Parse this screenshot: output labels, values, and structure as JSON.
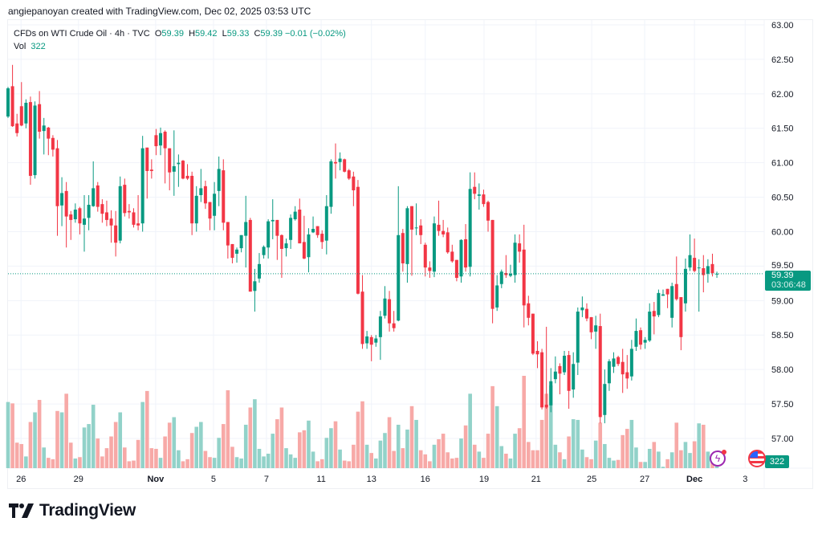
{
  "credit": "angiepanoyan created with TradingView.com, Dec 02, 2025 03:53 UTC",
  "legend": {
    "symbol": "CFDs on WTI Crude Oil · 4h · TVC",
    "o_label": "O",
    "o": "59.39",
    "h_label": "H",
    "h": "59.42",
    "l_label": "L",
    "l": "59.33",
    "c_label": "C",
    "c": "59.39",
    "change": "−0.01 (−0.02%)",
    "vol_label": "Vol",
    "vol": "322"
  },
  "price_tag": {
    "price": "59.39",
    "countdown": "03:06:48"
  },
  "volume_tag": "322",
  "logo": "TradingView",
  "colors": {
    "up": "#089981",
    "down": "#F23645",
    "vol_up": "#92d2c9",
    "vol_down": "#f7a9a7",
    "grid": "#f0f3fa"
  },
  "chart_data": {
    "type": "candlestick",
    "title": "CFDs on WTI Crude Oil · 4h · TVC",
    "ylim": [
      56.6,
      63.07
    ],
    "yticks": [
      "63.00",
      "62.50",
      "62.00",
      "61.50",
      "61.00",
      "60.50",
      "60.00",
      "59.50",
      "59.00",
      "58.50",
      "58.00",
      "57.50",
      "57.00"
    ],
    "last_price": 59.39,
    "xticks": [
      {
        "label": "26",
        "bar": 2.9
      },
      {
        "label": "29",
        "bar": 15.7
      },
      {
        "label": "Nov",
        "bar": 32.9,
        "bold": true
      },
      {
        "label": "5",
        "bar": 45.8
      },
      {
        "label": "7",
        "bar": 57.6
      },
      {
        "label": "11",
        "bar": 69.8
      },
      {
        "label": "13",
        "bar": 81.0
      },
      {
        "label": "16",
        "bar": 93.0
      },
      {
        "label": "19",
        "bar": 106.1
      },
      {
        "label": "21",
        "bar": 117.7
      },
      {
        "label": "25",
        "bar": 130.1
      },
      {
        "label": "27",
        "bar": 141.9
      },
      {
        "label": "Dec",
        "bar": 153.0,
        "bold": true
      },
      {
        "label": "3",
        "bar": 164.3
      }
    ],
    "ohlc": [
      [
        61.67,
        62.1,
        61.65,
        62.08
      ],
      [
        62.11,
        62.42,
        61.52,
        61.53
      ],
      [
        61.57,
        61.71,
        61.38,
        61.43
      ],
      [
        61.82,
        62.17,
        61.53,
        61.54
      ],
      [
        61.57,
        61.92,
        61.5,
        61.87
      ],
      [
        61.88,
        61.96,
        60.68,
        60.81
      ],
      [
        60.82,
        61.89,
        60.77,
        61.83
      ],
      [
        61.85,
        62.04,
        61.35,
        61.45
      ],
      [
        61.46,
        61.65,
        61.12,
        61.54
      ],
      [
        61.51,
        61.52,
        61.11,
        61.35
      ],
      [
        61.36,
        61.4,
        61.09,
        61.19
      ],
      [
        61.21,
        61.33,
        59.94,
        60.37
      ],
      [
        60.38,
        60.79,
        60.08,
        60.56
      ],
      [
        60.59,
        60.72,
        59.77,
        60.22
      ],
      [
        60.25,
        60.3,
        59.88,
        60.17
      ],
      [
        60.18,
        60.41,
        60.13,
        60.32
      ],
      [
        60.34,
        60.36,
        59.96,
        60.12
      ],
      [
        60.1,
        60.53,
        59.71,
        60.19
      ],
      [
        60.2,
        60.53,
        60.02,
        60.39
      ],
      [
        60.37,
        61.02,
        60.36,
        60.63
      ],
      [
        60.67,
        60.72,
        60.29,
        60.36
      ],
      [
        60.4,
        60.47,
        60.13,
        60.26
      ],
      [
        60.28,
        60.45,
        60.08,
        60.17
      ],
      [
        60.19,
        60.31,
        59.84,
        60.09
      ],
      [
        60.09,
        60.3,
        59.64,
        59.84
      ],
      [
        59.87,
        60.8,
        59.83,
        60.66
      ],
      [
        60.68,
        60.77,
        60.22,
        60.27
      ],
      [
        60.3,
        60.4,
        60.19,
        60.28
      ],
      [
        60.28,
        60.34,
        60.06,
        60.1
      ],
      [
        60.12,
        60.53,
        60.02,
        60.09
      ],
      [
        60.12,
        61.39,
        60.0,
        61.21
      ],
      [
        61.22,
        61.22,
        60.48,
        60.88
      ],
      [
        60.9,
        61.05,
        60.77,
        60.88
      ],
      [
        61.4,
        61.49,
        61.11,
        61.24
      ],
      [
        61.25,
        61.51,
        61.11,
        61.43
      ],
      [
        61.45,
        61.47,
        60.7,
        61.21
      ],
      [
        61.21,
        61.21,
        60.6,
        60.86
      ],
      [
        60.87,
        61.47,
        60.52,
        60.95
      ],
      [
        60.98,
        61.12,
        60.65,
        61.0
      ],
      [
        61.03,
        61.04,
        60.76,
        60.77
      ],
      [
        60.81,
        60.98,
        60.75,
        60.77
      ],
      [
        60.81,
        60.87,
        59.95,
        60.12
      ],
      [
        60.12,
        60.66,
        60.0,
        60.52
      ],
      [
        60.53,
        60.91,
        60.43,
        60.63
      ],
      [
        60.66,
        60.74,
        60.33,
        60.41
      ],
      [
        60.43,
        60.43,
        60.02,
        60.19
      ],
      [
        60.23,
        60.72,
        60.02,
        60.55
      ],
      [
        60.59,
        61.09,
        60.37,
        60.91
      ],
      [
        60.89,
        61.05,
        60.02,
        60.13
      ],
      [
        60.14,
        60.14,
        59.61,
        59.8
      ],
      [
        59.82,
        59.82,
        59.54,
        59.62
      ],
      [
        59.68,
        59.77,
        59.55,
        59.74
      ],
      [
        59.76,
        59.95,
        59.7,
        59.95
      ],
      [
        59.94,
        60.52,
        59.48,
        60.14
      ],
      [
        60.17,
        60.2,
        59.13,
        59.13
      ],
      [
        59.14,
        59.46,
        58.84,
        59.28
      ],
      [
        59.32,
        59.69,
        59.26,
        59.53
      ],
      [
        59.66,
        59.8,
        59.61,
        59.78
      ],
      [
        59.77,
        60.18,
        59.61,
        60.15
      ],
      [
        60.15,
        60.47,
        59.89,
        60.17
      ],
      [
        60.17,
        60.17,
        59.59,
        59.94
      ],
      [
        59.95,
        59.96,
        59.33,
        59.75
      ],
      [
        59.76,
        59.9,
        59.64,
        59.83
      ],
      [
        59.88,
        60.25,
        59.75,
        60.2
      ],
      [
        60.18,
        60.37,
        60.16,
        60.29
      ],
      [
        60.32,
        60.48,
        59.83,
        59.83
      ],
      [
        59.85,
        60.23,
        59.6,
        59.61
      ],
      [
        59.63,
        60.05,
        59.41,
        59.96
      ],
      [
        59.99,
        60.22,
        59.98,
        60.04
      ],
      [
        60.08,
        60.08,
        59.91,
        59.95
      ],
      [
        59.97,
        60.02,
        59.75,
        59.85
      ],
      [
        59.87,
        60.53,
        59.67,
        60.37
      ],
      [
        60.36,
        61.05,
        60.26,
        61.02
      ],
      [
        61.01,
        61.28,
        60.77,
        60.99
      ],
      [
        61.01,
        61.15,
        60.89,
        61.06
      ],
      [
        61.05,
        61.06,
        60.86,
        60.87
      ],
      [
        60.89,
        60.91,
        60.75,
        60.77
      ],
      [
        60.8,
        60.87,
        60.37,
        60.6
      ],
      [
        60.65,
        60.75,
        59.09,
        59.1
      ],
      [
        59.13,
        59.37,
        58.3,
        58.37
      ],
      [
        58.38,
        58.56,
        58.3,
        58.48
      ],
      [
        58.47,
        58.5,
        58.12,
        58.36
      ],
      [
        58.39,
        58.5,
        58.33,
        58.45
      ],
      [
        58.47,
        58.85,
        58.14,
        58.77
      ],
      [
        58.78,
        59.21,
        58.74,
        59.03
      ],
      [
        59.02,
        59.14,
        58.55,
        58.67
      ],
      [
        58.67,
        58.85,
        58.55,
        58.6
      ],
      [
        58.71,
        60.66,
        58.7,
        59.95
      ],
      [
        59.98,
        60.04,
        59.42,
        59.54
      ],
      [
        59.53,
        60.37,
        59.26,
        60.34
      ],
      [
        60.37,
        60.37,
        59.36,
        60.03
      ],
      [
        60.05,
        60.41,
        59.95,
        60.06
      ],
      [
        60.09,
        60.18,
        59.82,
        59.95
      ],
      [
        59.81,
        59.84,
        59.35,
        59.48
      ],
      [
        59.48,
        59.57,
        59.33,
        59.43
      ],
      [
        59.42,
        60.22,
        59.34,
        60.12
      ],
      [
        60.1,
        60.45,
        59.94,
        60.01
      ],
      [
        60.01,
        60.17,
        59.92,
        59.96
      ],
      [
        59.99,
        60.06,
        59.68,
        59.7
      ],
      [
        59.71,
        59.81,
        59.55,
        59.57
      ],
      [
        59.59,
        59.59,
        59.28,
        59.33
      ],
      [
        59.35,
        59.89,
        59.26,
        59.88
      ],
      [
        59.89,
        60.11,
        59.42,
        59.48
      ],
      [
        59.49,
        60.86,
        59.35,
        60.62
      ],
      [
        60.65,
        60.86,
        60.47,
        60.55
      ],
      [
        60.52,
        60.7,
        60.32,
        60.54
      ],
      [
        60.54,
        60.61,
        60.36,
        60.4
      ],
      [
        60.43,
        60.45,
        60.0,
        60.16
      ],
      [
        60.17,
        60.17,
        58.67,
        58.88
      ],
      [
        58.9,
        59.37,
        58.85,
        59.22
      ],
      [
        59.24,
        59.45,
        59.18,
        59.42
      ],
      [
        59.4,
        59.66,
        59.33,
        59.37
      ],
      [
        59.36,
        59.52,
        59.34,
        59.39
      ],
      [
        59.37,
        59.96,
        59.26,
        59.84
      ],
      [
        59.83,
        59.96,
        59.55,
        59.71
      ],
      [
        59.74,
        60.1,
        58.61,
        58.93
      ],
      [
        58.96,
        59.07,
        58.64,
        58.75
      ],
      [
        58.81,
        58.81,
        58.21,
        58.23
      ],
      [
        58.27,
        58.41,
        58.02,
        58.22
      ],
      [
        58.25,
        58.3,
        57.42,
        57.45
      ],
      [
        57.49,
        58.62,
        57.43,
        57.45
      ],
      [
        57.48,
        58.02,
        57.38,
        57.83
      ],
      [
        57.86,
        58.19,
        57.8,
        57.97
      ],
      [
        58.05,
        58.09,
        57.64,
        57.94
      ],
      [
        57.96,
        58.27,
        57.92,
        58.2
      ],
      [
        58.21,
        58.27,
        57.43,
        57.69
      ],
      [
        57.71,
        58.25,
        57.59,
        58.08
      ],
      [
        58.1,
        58.9,
        57.92,
        58.84
      ],
      [
        58.86,
        59.06,
        58.76,
        58.9
      ],
      [
        58.88,
        58.96,
        58.7,
        58.74
      ],
      [
        58.76,
        58.76,
        58.44,
        58.54
      ],
      [
        58.55,
        58.78,
        58.3,
        58.64
      ],
      [
        58.63,
        58.81,
        57.22,
        57.31
      ],
      [
        57.34,
        58.0,
        57.22,
        57.79
      ],
      [
        57.8,
        58.15,
        57.69,
        58.12
      ],
      [
        58.04,
        58.25,
        57.95,
        58.16
      ],
      [
        58.18,
        58.2,
        58.05,
        58.08
      ],
      [
        58.11,
        58.3,
        57.66,
        57.93
      ],
      [
        57.96,
        58.21,
        57.72,
        57.87
      ],
      [
        57.9,
        58.43,
        57.84,
        58.3
      ],
      [
        58.33,
        58.74,
        58.27,
        58.56
      ],
      [
        58.57,
        58.61,
        58.29,
        58.36
      ],
      [
        58.39,
        58.47,
        58.3,
        58.43
      ],
      [
        58.42,
        58.96,
        58.4,
        58.84
      ],
      [
        58.85,
        58.98,
        58.51,
        58.77
      ],
      [
        58.79,
        59.16,
        58.76,
        59.11
      ],
      [
        59.07,
        59.16,
        59.07,
        59.09
      ],
      [
        59.17,
        59.17,
        58.89,
        59.09
      ],
      [
        58.75,
        59.26,
        58.61,
        59.21
      ],
      [
        59.24,
        59.64,
        59.0,
        59.02
      ],
      [
        59.05,
        59.05,
        58.28,
        58.47
      ],
      [
        58.96,
        59.61,
        58.84,
        59.46
      ],
      [
        59.48,
        59.96,
        59.43,
        59.66
      ],
      [
        59.62,
        59.9,
        59.41,
        59.43
      ],
      [
        59.47,
        59.6,
        58.84,
        59.48
      ],
      [
        59.47,
        59.66,
        59.12,
        59.37
      ],
      [
        59.39,
        59.6,
        59.26,
        59.5
      ],
      [
        59.53,
        59.68,
        59.35,
        59.4
      ],
      [
        59.39,
        59.42,
        59.33,
        59.39
      ]
    ],
    "volume": [
      9600,
      9400,
      3700,
      3500,
      1700,
      6700,
      8100,
      9900,
      3000,
      1500,
      1300,
      8300,
      8100,
      10800,
      3700,
      1400,
      1600,
      5900,
      6400,
      9200,
      4300,
      1700,
      2900,
      4600,
      6700,
      8100,
      3000,
      1000,
      1100,
      4100,
      9600,
      11200,
      2900,
      2800,
      1500,
      4600,
      6600,
      7400,
      2600,
      1000,
      1300,
      5100,
      6000,
      6700,
      2500,
      1600,
      1500,
      4400,
      6400,
      11300,
      3100,
      1600,
      1400,
      6300,
      8800,
      10000,
      2800,
      1700,
      2100,
      5000,
      7100,
      8800,
      2900,
      2000,
      1500,
      5200,
      5500,
      6900,
      2400,
      1000,
      1300,
      4400,
      5800,
      6800,
      2700,
      1100,
      1000,
      3400,
      8200,
      9700,
      3400,
      2200,
      1400,
      4000,
      5100,
      7400,
      2500,
      6300,
      2900,
      5600,
      9000,
      7000,
      2600,
      2000,
      1000,
      3400,
      4200,
      5000,
      2300,
      1400,
      1500,
      4300,
      6200,
      10800,
      3400,
      2400,
      1500,
      5000,
      11900,
      9000,
      3200,
      2100,
      1400,
      5000,
      5800,
      13400,
      3800,
      2600,
      2600,
      7000,
      10800,
      12000,
      3400,
      2300,
      1300,
      4600,
      7100,
      7000,
      2700,
      1600,
      1300,
      4000,
      6600,
      3500,
      1500,
      1100,
      1200,
      4800,
      5700,
      7000,
      3000,
      900,
      900,
      2800,
      3800,
      2400,
      200,
      1300,
      2300,
      6600,
      2600,
      3800,
      2200,
      3900,
      6500,
      6300,
      2400,
      1900,
      322
    ]
  }
}
